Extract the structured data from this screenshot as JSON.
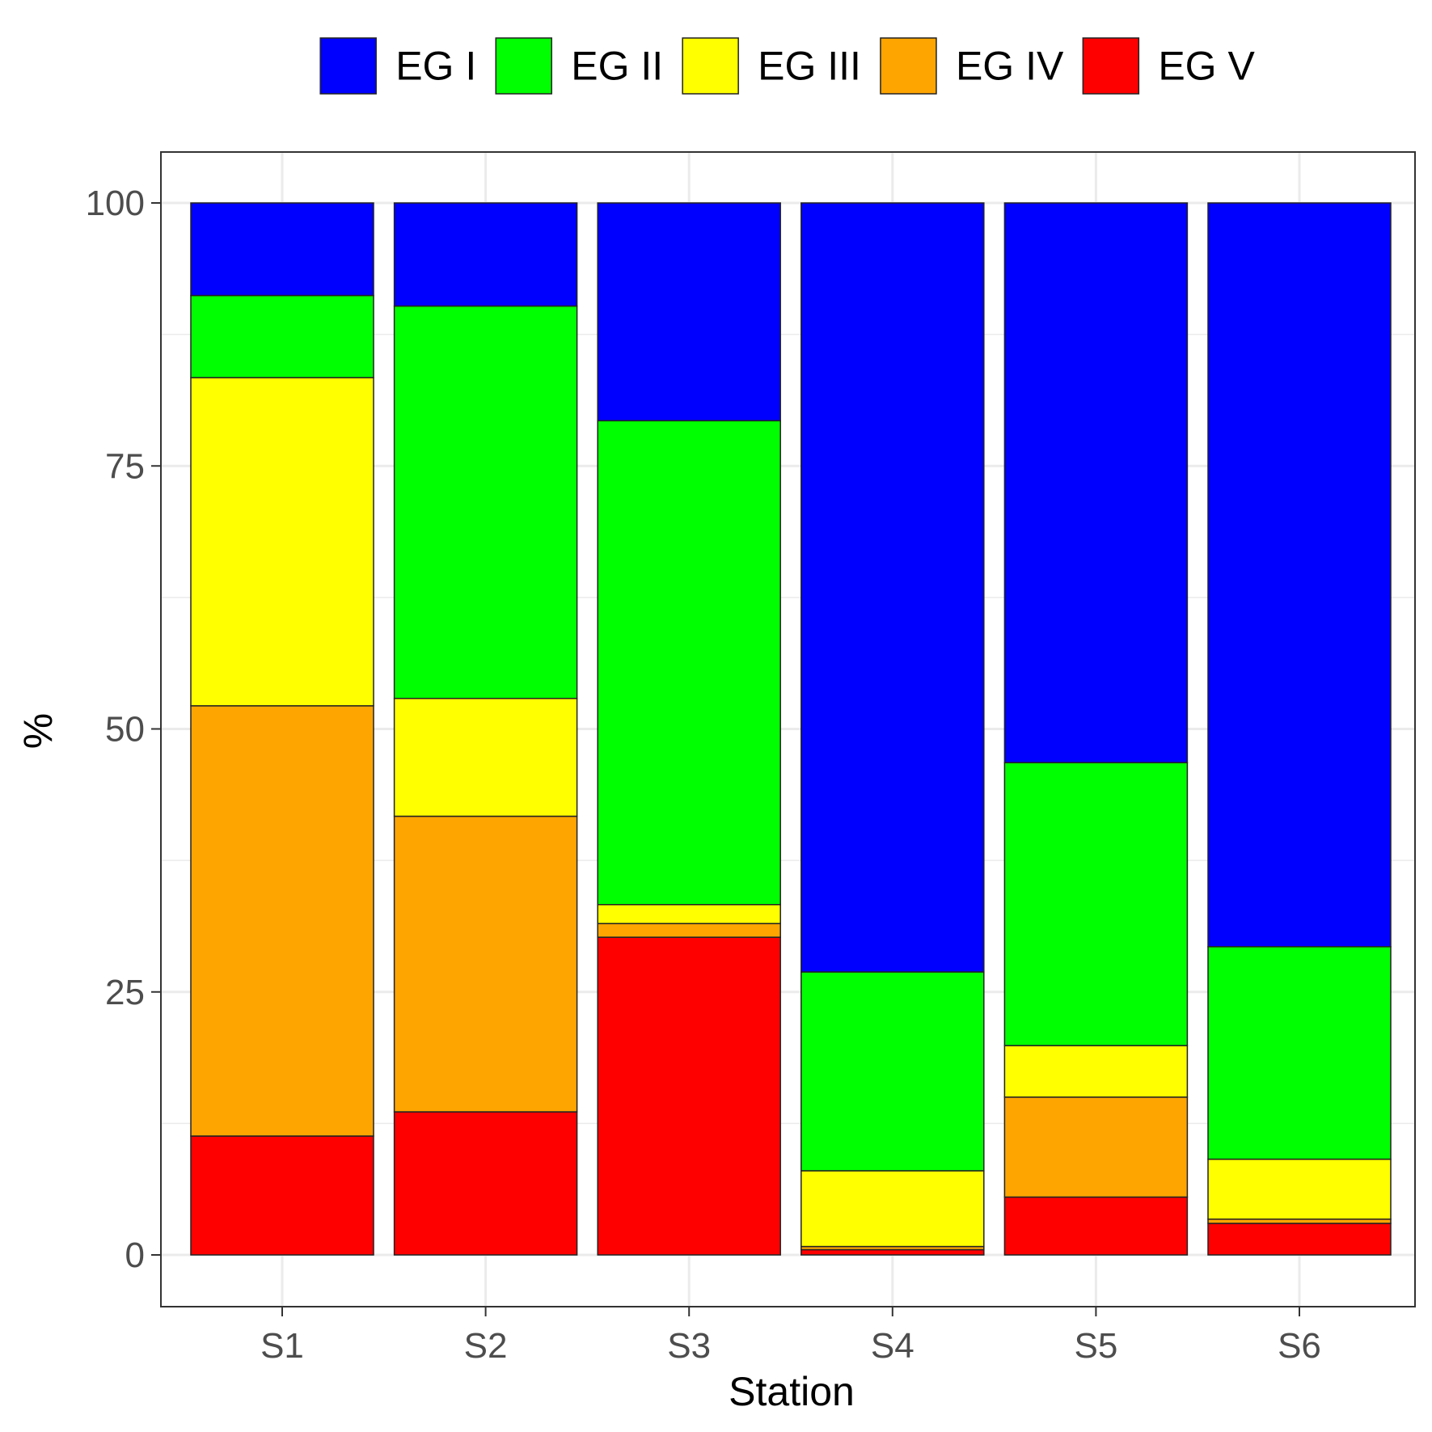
{
  "chart_data": {
    "type": "bar",
    "stacked": true,
    "title": "",
    "xlabel": "Station",
    "ylabel": "%",
    "categories": [
      "S1",
      "S2",
      "S3",
      "S4",
      "S5",
      "S6"
    ],
    "ylim": [
      0,
      100
    ],
    "yticks": [
      0,
      25,
      50,
      75,
      100
    ],
    "grid": true,
    "legend_position": "top",
    "series": [
      {
        "name": "EG V",
        "color": "#FF0000",
        "values": [
          11.3,
          13.6,
          30.2,
          0.5,
          5.5,
          3.0
        ]
      },
      {
        "name": "EG IV",
        "color": "#FFA500",
        "values": [
          40.9,
          28.1,
          1.3,
          0.3,
          9.5,
          0.4
        ]
      },
      {
        "name": "EG III",
        "color": "#FFFF00",
        "values": [
          31.2,
          11.2,
          1.8,
          7.2,
          4.9,
          5.7
        ]
      },
      {
        "name": "EG II",
        "color": "#00FF00",
        "values": [
          7.8,
          37.3,
          46.0,
          18.9,
          26.9,
          20.2
        ]
      },
      {
        "name": "EG I",
        "color": "#0000FF",
        "values": [
          8.8,
          9.8,
          20.7,
          73.1,
          53.2,
          70.7
        ]
      }
    ],
    "legend_order": [
      "EG I",
      "EG II",
      "EG III",
      "EG IV",
      "EG V"
    ]
  }
}
